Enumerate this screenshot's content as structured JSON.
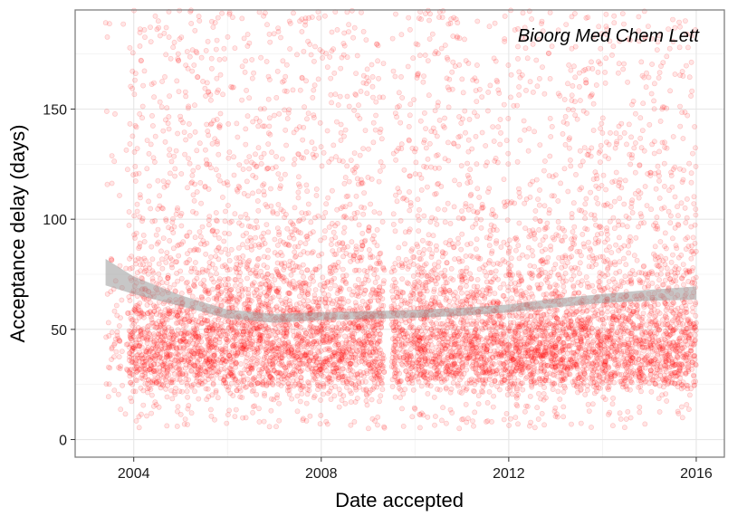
{
  "chart_data": {
    "type": "scatter",
    "annotation": "Bioorg Med Chem Lett",
    "xlabel": "Date accepted",
    "ylabel": "Acceptance delay (days)",
    "xlim": [
      2002.75,
      2016.6
    ],
    "ylim": [
      -8,
      195
    ],
    "x_ticks": [
      2004,
      2008,
      2012,
      2016
    ],
    "x_minor_ticks": [
      2006,
      2010,
      2014
    ],
    "y_ticks": [
      0,
      50,
      100,
      150
    ],
    "y_minor_ticks": [
      25,
      75,
      125,
      175
    ],
    "x_tick_labels": [
      "2004",
      "2008",
      "2012",
      "2016"
    ],
    "y_tick_labels": [
      "0",
      "50",
      "100",
      "150"
    ],
    "grid": true,
    "point_color": "#ff0000",
    "smooth_color": "#999999",
    "clusters": [
      {
        "x_range": [
          2003.4,
          2003.9
        ],
        "delay_range": [
          10,
          120
        ],
        "density": "sparse"
      },
      {
        "x_range": [
          2003.9,
          2009.35
        ],
        "delay_range": [
          5,
          195
        ],
        "core_delay": [
          15,
          90
        ],
        "density": "dense"
      },
      {
        "x_range": [
          2009.5,
          2016.0
        ],
        "delay_range": [
          5,
          195
        ],
        "core_delay": [
          15,
          95
        ],
        "density": "dense"
      }
    ],
    "smooth_trend": {
      "x": [
        2003.4,
        2004.0,
        2005.0,
        2006.0,
        2007.0,
        2008.0,
        2009.0,
        2010.0,
        2011.0,
        2012.0,
        2013.0,
        2014.0,
        2015.0,
        2016.0
      ],
      "y": [
        76,
        70,
        63,
        57,
        55,
        56,
        56.5,
        57,
        58,
        59.5,
        62,
        64,
        65.5,
        66.5
      ],
      "band_halfwidth": [
        6,
        4,
        2.5,
        2,
        2,
        1.8,
        1.8,
        1.8,
        1.8,
        1.8,
        2,
        2,
        2.5,
        3
      ]
    }
  }
}
